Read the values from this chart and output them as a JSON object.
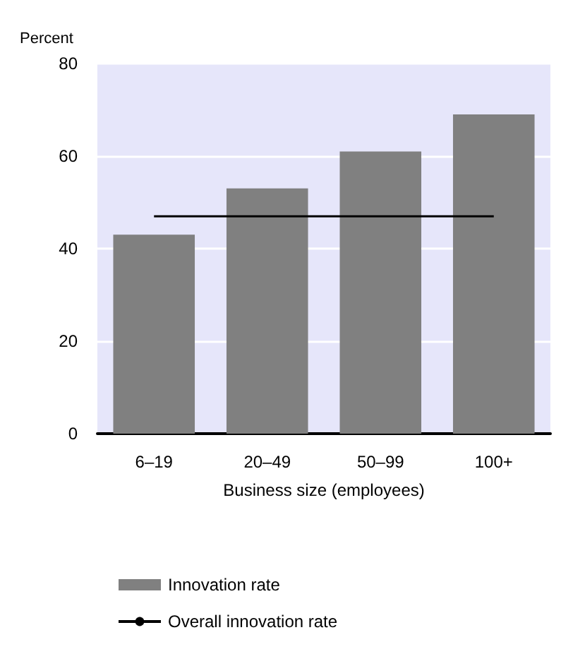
{
  "chart_data": {
    "type": "bar",
    "ylabel": "Percent",
    "xlabel": "Business size (employees)",
    "categories": [
      "6–19",
      "20–49",
      "50–99",
      "100+"
    ],
    "series": [
      {
        "name": "Innovation rate",
        "color": "#808080",
        "values": [
          43,
          53,
          61,
          69
        ]
      },
      {
        "name": "Overall innovation rate",
        "type": "line",
        "color": "#000000",
        "marker": "none",
        "line_style": "solid",
        "values": [
          47,
          47,
          47,
          47
        ]
      }
    ],
    "ylim": [
      0,
      80
    ],
    "yticks": [
      0,
      20,
      40,
      60,
      80
    ],
    "grid": "y",
    "legend": "bottom"
  }
}
